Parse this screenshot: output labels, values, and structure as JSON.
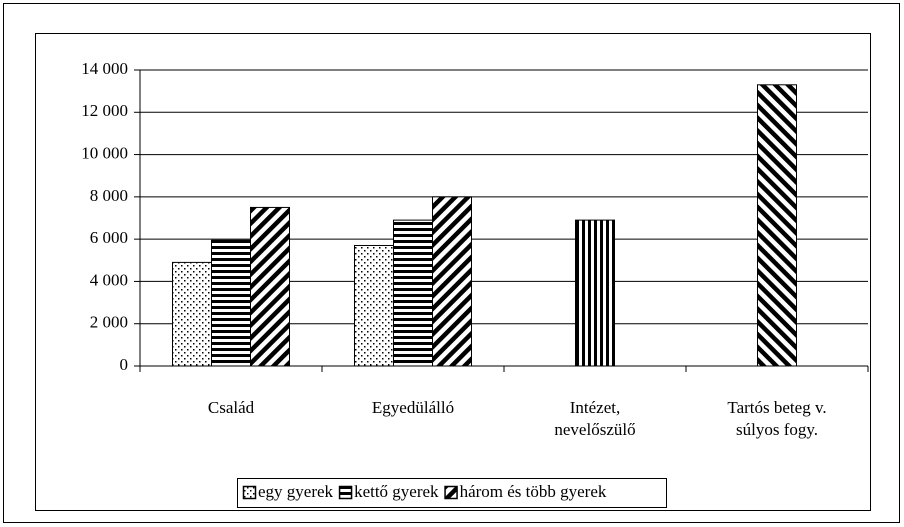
{
  "chart_data": {
    "type": "bar",
    "categories": [
      [
        "Család"
      ],
      [
        "Egyedülálló"
      ],
      [
        "Intézet,",
        "nevelőszülő"
      ],
      [
        "Tartós beteg v.",
        "súlyos fogy."
      ]
    ],
    "series": [
      {
        "name": "egy gyerek",
        "color": "#000000",
        "pattern": "dots",
        "values": [
          4900,
          5700,
          null,
          null
        ]
      },
      {
        "name": "kettő gyerek",
        "color": "#000000",
        "pattern": "horizontal",
        "values": [
          5950,
          6900,
          null,
          null
        ]
      },
      {
        "name": "három és több gyerek",
        "color": "#000000",
        "pattern": "diagonal",
        "values": [
          7500,
          8000,
          null,
          null
        ]
      },
      {
        "color": "#000000",
        "pattern": "vertical",
        "values": [
          null,
          null,
          6900,
          null
        ]
      },
      {
        "color": "#000000",
        "pattern": "backdiagonal",
        "values": [
          null,
          null,
          null,
          13300
        ]
      }
    ],
    "ylim": [
      0,
      14000
    ],
    "yticks": [
      0,
      {
        "value": 2000,
        "label": "2 000"
      },
      {
        "value": 4000,
        "label": "4 000"
      },
      {
        "value": 6000,
        "label": "6 000"
      },
      {
        "value": 8000,
        "label": "8 000"
      },
      {
        "value": 10000,
        "label": "10 000"
      },
      {
        "value": 12000,
        "label": "12 000"
      },
      {
        "value": 14000,
        "label": "14 000"
      }
    ],
    "grid": true
  }
}
